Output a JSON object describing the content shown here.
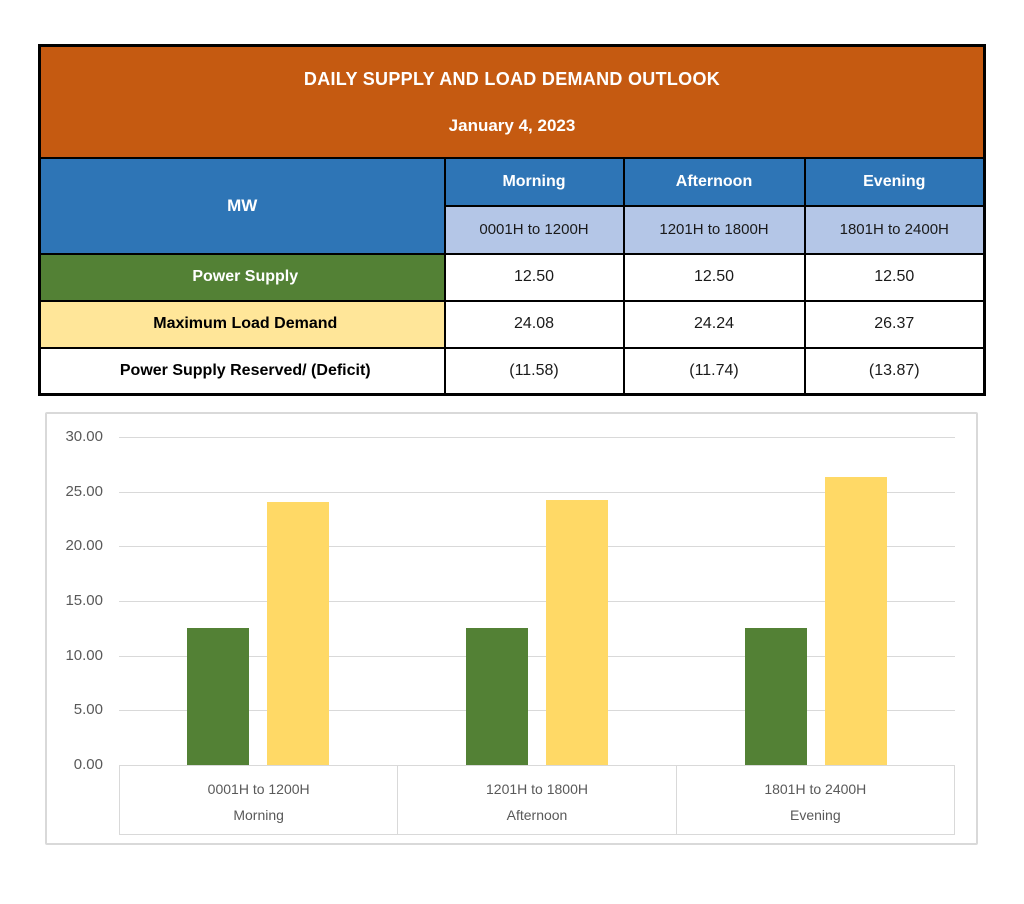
{
  "table": {
    "title": "DAILY SUPPLY AND LOAD DEMAND OUTLOOK",
    "date": "January 4, 2023",
    "unit_header": "MW",
    "periods": [
      {
        "name": "Morning",
        "hours": "0001H to 1200H"
      },
      {
        "name": "Afternoon",
        "hours": "1201H to 1800H"
      },
      {
        "name": "Evening",
        "hours": "1801H to 2400H"
      }
    ],
    "rows": [
      {
        "label": "Power Supply",
        "values": [
          "12.50",
          "12.50",
          "12.50"
        ]
      },
      {
        "label": "Maximum Load Demand",
        "values": [
          "24.08",
          "24.24",
          "26.37"
        ]
      },
      {
        "label": "Power Supply Reserved/ (Deficit)",
        "values": [
          "(11.58)",
          "(11.74)",
          "(13.87)"
        ]
      }
    ]
  },
  "chart_data": {
    "type": "bar",
    "categories": [
      {
        "hours": "0001H to 1200H",
        "period": "Morning"
      },
      {
        "hours": "1201H to 1800H",
        "period": "Afternoon"
      },
      {
        "hours": "1801H to 2400H",
        "period": "Evening"
      }
    ],
    "series": [
      {
        "name": "Power Supply",
        "color": "#538135",
        "values": [
          12.5,
          12.5,
          12.5
        ]
      },
      {
        "name": "Maximum Load Demand",
        "color": "#FFD966",
        "values": [
          24.08,
          24.24,
          26.37
        ]
      }
    ],
    "title": "",
    "xlabel": "",
    "ylabel": "",
    "ylim": [
      0,
      30
    ],
    "ytick_step": 5,
    "ytick_labels": [
      "0.00",
      "5.00",
      "10.00",
      "15.00",
      "20.00",
      "25.00",
      "30.00"
    ],
    "grid": true,
    "legend_position": "none"
  },
  "colors": {
    "banner_bg": "#C55A11",
    "header_blue": "#2E75B6",
    "header_light_blue": "#B4C6E7",
    "supply_green": "#538135",
    "demand_pale_yellow": "#FFE699",
    "bar_green": "#538135",
    "bar_yellow": "#FFD966",
    "table_border": "#000000",
    "chart_grid": "#D9D9D9",
    "axis_text": "#595959"
  }
}
